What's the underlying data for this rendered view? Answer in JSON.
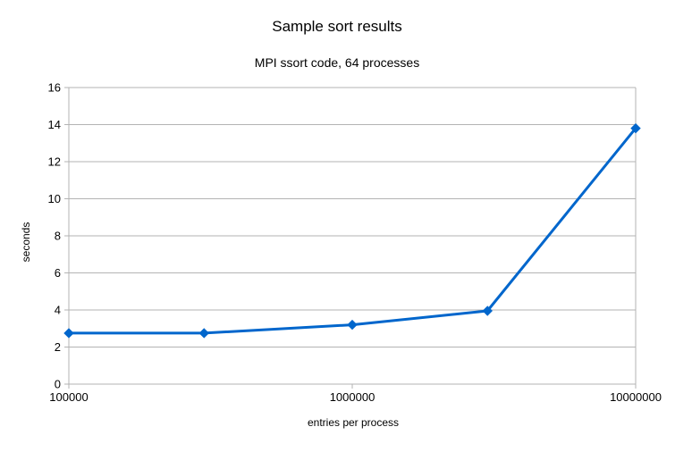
{
  "chart_data": {
    "type": "line",
    "title": "Sample sort results",
    "subtitle": "MPI ssort code, 64 processes",
    "xlabel": "entries per process",
    "ylabel": "seconds",
    "x_scale": "log",
    "xlim": [
      100000,
      10000000
    ],
    "ylim": [
      0,
      16
    ],
    "x_ticks": [
      "100000",
      "1000000",
      "10000000"
    ],
    "y_ticks": [
      "0",
      "2",
      "4",
      "6",
      "8",
      "10",
      "12",
      "14",
      "16"
    ],
    "grid": "horizontal",
    "legend": "none",
    "series": [
      {
        "color": "#0066cc",
        "marker": "diamond",
        "x": [
          100000,
          300000,
          1000000,
          3000000,
          10000000
        ],
        "y": [
          2.75,
          2.75,
          3.2,
          3.95,
          13.8
        ]
      }
    ]
  }
}
